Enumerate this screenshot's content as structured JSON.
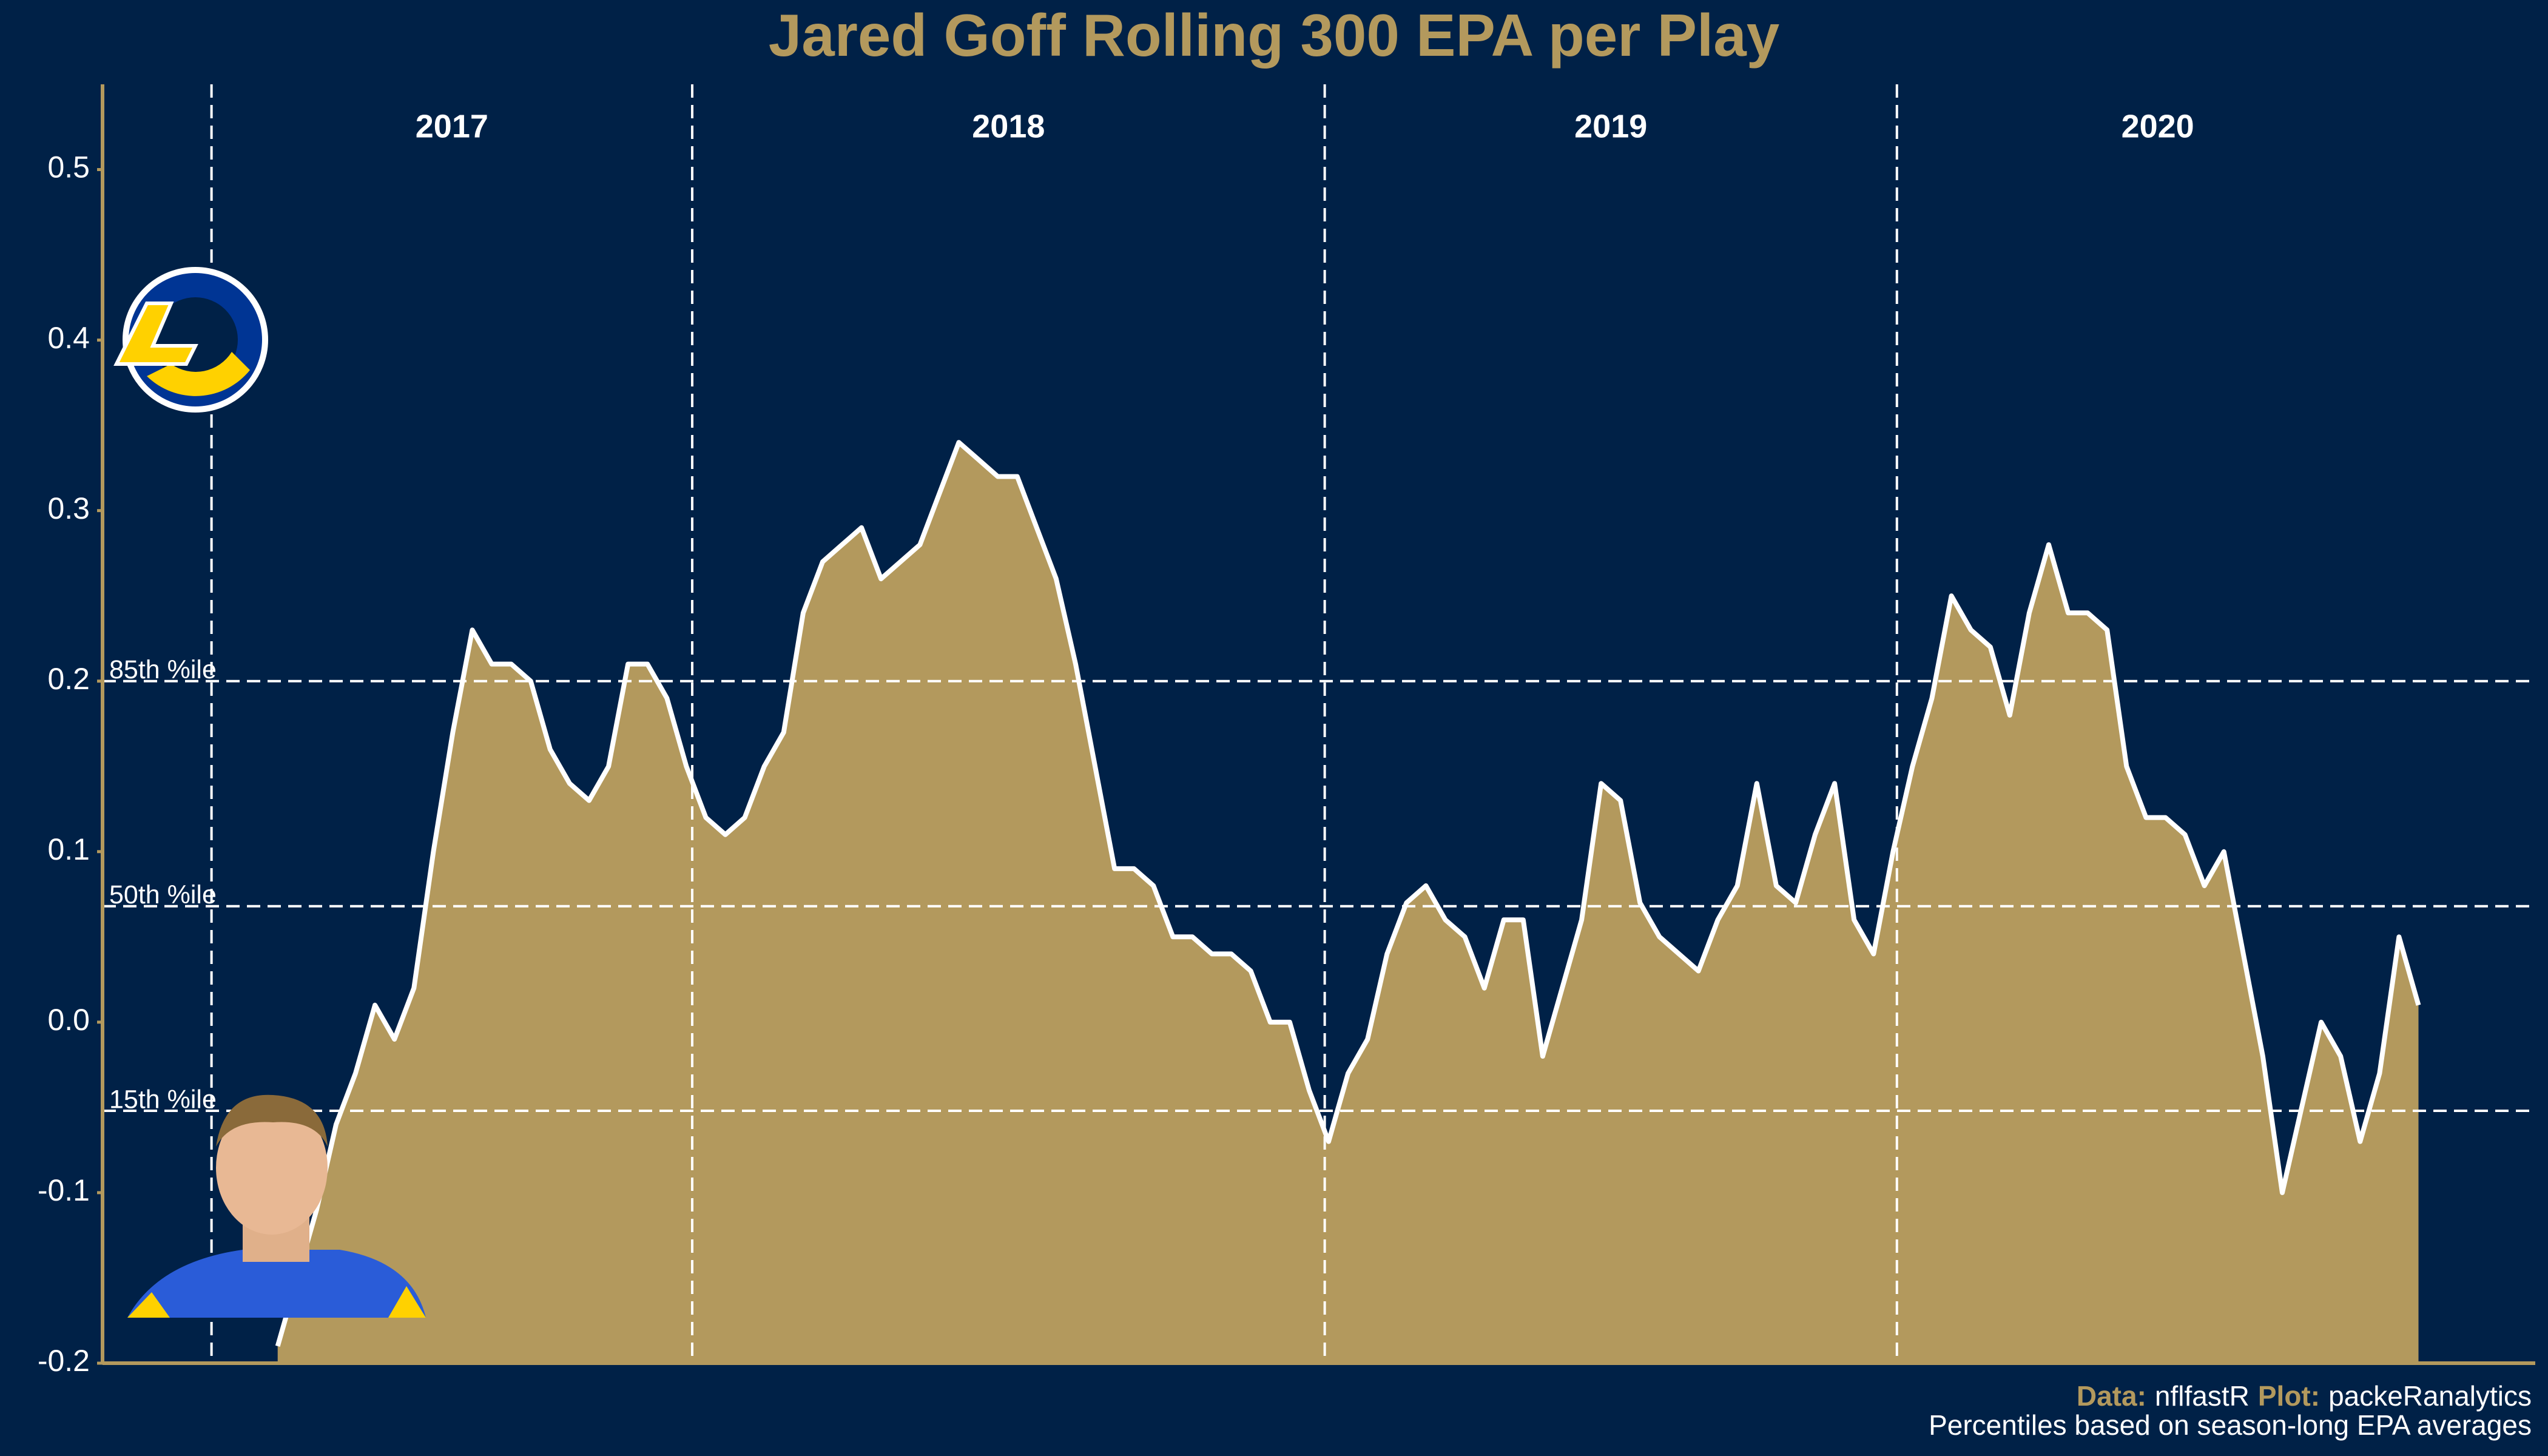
{
  "chart_data": {
    "type": "area",
    "title": "Jared Goff Rolling 300 EPA per Play",
    "color": "#B3995D",
    "line_color": "#ffffff",
    "background": "#002147",
    "values": [
      -0.19,
      -0.15,
      -0.11,
      -0.06,
      -0.03,
      0.01,
      -0.01,
      0.02,
      0.1,
      0.17,
      0.23,
      0.21,
      0.21,
      0.2,
      0.16,
      0.14,
      0.13,
      0.15,
      0.21,
      0.21,
      0.19,
      0.15,
      0.12,
      0.11,
      0.12,
      0.15,
      0.17,
      0.24,
      0.27,
      0.28,
      0.29,
      0.26,
      0.27,
      0.28,
      0.31,
      0.34,
      0.33,
      0.32,
      0.32,
      0.29,
      0.26,
      0.21,
      0.15,
      0.09,
      0.09,
      0.08,
      0.05,
      0.05,
      0.04,
      0.04,
      0.03,
      0.0,
      0.0,
      -0.04,
      -0.07,
      -0.03,
      -0.01,
      0.04,
      0.07,
      0.08,
      0.06,
      0.05,
      0.02,
      0.06,
      0.06,
      -0.02,
      0.02,
      0.06,
      0.14,
      0.13,
      0.07,
      0.05,
      0.04,
      0.03,
      0.06,
      0.08,
      0.14,
      0.08,
      0.07,
      0.11,
      0.14,
      0.06,
      0.04,
      0.1,
      0.15,
      0.19,
      0.25,
      0.23,
      0.22,
      0.18,
      0.24,
      0.28,
      0.24,
      0.24,
      0.23,
      0.15,
      0.12,
      0.12,
      0.11,
      0.08,
      0.1,
      0.04,
      -0.02,
      -0.1,
      -0.05,
      0.0,
      -0.02,
      -0.07,
      -0.03,
      0.05,
      0.01
    ],
    "xlim": [
      -9,
      116
    ],
    "ylim": [
      -0.2,
      0.55
    ],
    "yticks": [
      -0.2,
      -0.1,
      {
        "value": 0,
        "label": "0.0"
      },
      0.1,
      0.2,
      0.3,
      0.4,
      0.5
    ],
    "seasons": [
      {
        "label": "2017",
        "start": -3.4,
        "end": 21.3
      },
      {
        "label": "2018",
        "start": 21.3,
        "end": 53.8
      },
      {
        "label": "2019",
        "start": 53.8,
        "end": 83.2
      },
      {
        "label": "2020",
        "start": 83.2,
        "end": 110
      }
    ],
    "reference_lines": [
      {
        "value": 0.2,
        "label": "85th %ile"
      },
      {
        "value": 0.068,
        "label": "50th %ile"
      },
      {
        "value": -0.052,
        "label": "15th %ile"
      }
    ],
    "footer": {
      "data_label": "Data:",
      "data_source": "nflfastR",
      "plot_label": "Plot:",
      "plot_author": "packeRanalytics",
      "note": "Percentiles based on season-long EPA averages"
    }
  }
}
